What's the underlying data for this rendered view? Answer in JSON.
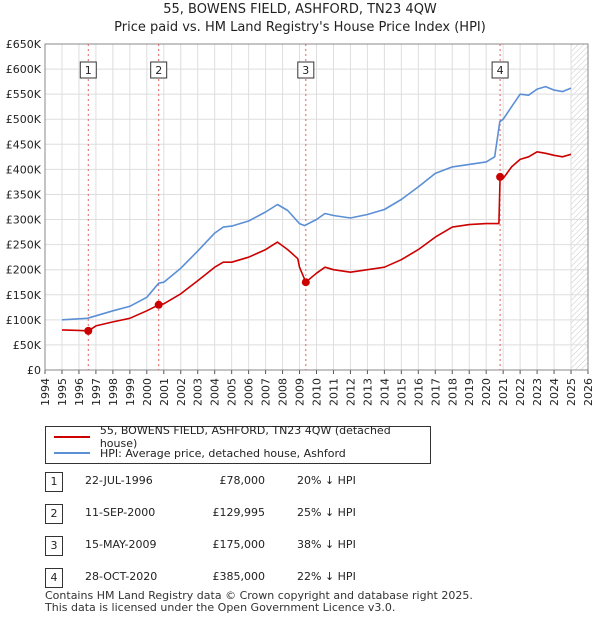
{
  "header": {
    "title": "55, BOWENS FIELD, ASHFORD, TN23 4QW",
    "subtitle": "Price paid vs. HM Land Registry's House Price Index (HPI)"
  },
  "chart_data": {
    "type": "line",
    "title": "55, BOWENS FIELD, ASHFORD, TN23 4QW",
    "subtitle": "Price paid vs. HM Land Registry's House Price Index (HPI)",
    "xlim": [
      1994,
      2026
    ],
    "ylim": [
      0,
      650000
    ],
    "x_ticks": [
      1994,
      1995,
      1996,
      1997,
      1998,
      1999,
      2000,
      2001,
      2002,
      2003,
      2004,
      2005,
      2006,
      2007,
      2008,
      2009,
      2010,
      2011,
      2012,
      2013,
      2014,
      2015,
      2016,
      2017,
      2018,
      2019,
      2020,
      2021,
      2022,
      2023,
      2024,
      2025,
      2026
    ],
    "y_ticks": [
      0,
      50000,
      100000,
      150000,
      200000,
      250000,
      300000,
      350000,
      400000,
      450000,
      500000,
      550000,
      600000,
      650000
    ],
    "y_tick_labels": [
      "£0",
      "£50K",
      "£100K",
      "£150K",
      "£200K",
      "£250K",
      "£300K",
      "£350K",
      "£400K",
      "£450K",
      "£500K",
      "£550K",
      "£600K",
      "£650K"
    ],
    "grid": true,
    "data_end_year": 2025.0,
    "series": [
      {
        "name": "HPI: Average price, detached house, Ashford",
        "color": "#5b8fd6",
        "x": [
          1995.0,
          1996.0,
          1996.5,
          1997.0,
          1998.0,
          1999.0,
          2000.0,
          2000.7,
          2001.0,
          2002.0,
          2003.0,
          2004.0,
          2004.5,
          2005.0,
          2006.0,
          2007.0,
          2007.7,
          2008.3,
          2009.0,
          2009.3,
          2010.0,
          2010.5,
          2011.0,
          2012.0,
          2013.0,
          2014.0,
          2015.0,
          2016.0,
          2017.0,
          2018.0,
          2019.0,
          2020.0,
          2020.5,
          2020.8,
          2021.0,
          2021.5,
          2022.0,
          2022.5,
          2023.0,
          2023.5,
          2024.0,
          2024.5,
          2025.0
        ],
        "y": [
          100000,
          102000,
          103000,
          108000,
          118000,
          127000,
          145000,
          173000,
          175000,
          203000,
          237000,
          273000,
          285000,
          287000,
          297000,
          315000,
          330000,
          318000,
          292000,
          288000,
          300000,
          312000,
          308000,
          303000,
          310000,
          320000,
          340000,
          365000,
          392000,
          405000,
          410000,
          415000,
          425000,
          495000,
          500000,
          525000,
          550000,
          548000,
          560000,
          565000,
          558000,
          555000,
          562000
        ]
      },
      {
        "name": "55, BOWENS FIELD, ASHFORD, TN23 4QW (detached house)",
        "color": "#cc0000",
        "x": [
          1995.0,
          1996.0,
          1996.55,
          1997.0,
          1998.0,
          1999.0,
          2000.0,
          2000.7,
          2001.0,
          2002.0,
          2003.0,
          2004.0,
          2004.5,
          2005.0,
          2006.0,
          2007.0,
          2007.7,
          2008.3,
          2008.9,
          2009.0,
          2009.37,
          2010.0,
          2010.5,
          2011.0,
          2012.0,
          2013.0,
          2014.0,
          2015.0,
          2016.0,
          2017.0,
          2018.0,
          2019.0,
          2020.0,
          2020.75,
          2020.82,
          2021.0,
          2021.5,
          2022.0,
          2022.5,
          2023.0,
          2023.5,
          2024.0,
          2024.5,
          2025.0
        ],
        "y": [
          80000,
          79000,
          78000,
          88000,
          96000,
          103000,
          118000,
          129995,
          132000,
          152000,
          178000,
          205000,
          215000,
          215000,
          225000,
          240000,
          255000,
          240000,
          222000,
          205000,
          175000,
          193000,
          205000,
          200000,
          195000,
          200000,
          205000,
          220000,
          240000,
          265000,
          285000,
          290000,
          292000,
          292000,
          385000,
          382000,
          405000,
          420000,
          425000,
          435000,
          432000,
          428000,
          425000,
          430000
        ]
      }
    ],
    "sales": [
      {
        "num": "1",
        "year": 1996.55,
        "price": 78000
      },
      {
        "num": "2",
        "year": 2000.7,
        "price": 129995
      },
      {
        "num": "3",
        "year": 2009.37,
        "price": 175000
      },
      {
        "num": "4",
        "year": 2020.82,
        "price": 385000
      }
    ]
  },
  "legend": {
    "property_label": "55, BOWENS FIELD, ASHFORD, TN23 4QW (detached house)",
    "hpi_label": "HPI: Average price, detached house, Ashford",
    "property_color": "#cc0000",
    "hpi_color": "#5b8fd6"
  },
  "transactions": [
    {
      "num": "1",
      "date": "22-JUL-1996",
      "price": "£78,000",
      "hpi": "20% ↓ HPI"
    },
    {
      "num": "2",
      "date": "11-SEP-2000",
      "price": "£129,995",
      "hpi": "25% ↓ HPI"
    },
    {
      "num": "3",
      "date": "15-MAY-2009",
      "price": "£175,000",
      "hpi": "38% ↓ HPI"
    },
    {
      "num": "4",
      "date": "28-OCT-2020",
      "price": "£385,000",
      "hpi": "22% ↓ HPI"
    }
  ],
  "footer": {
    "line1": "Contains HM Land Registry data © Crown copyright and database right 2025.",
    "line2": "This data is licensed under the Open Government Licence v3.0."
  }
}
